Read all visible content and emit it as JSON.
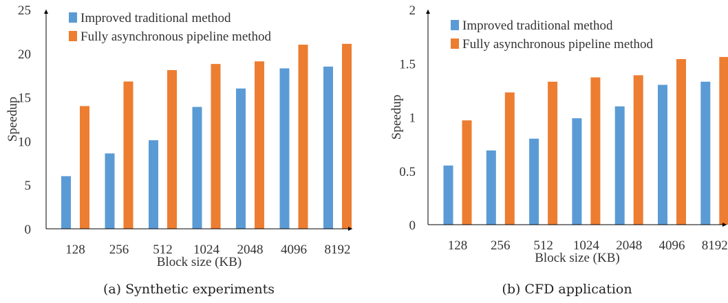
{
  "colors": {
    "series1": "#5b9bd5",
    "series2": "#ed7d31",
    "axis": "#000000"
  },
  "chart_data": [
    {
      "type": "bar",
      "caption": "(a) Synthetic experiments",
      "xlabel": "Block size (KB)",
      "ylabel": "Speedup",
      "ylim": [
        0,
        25
      ],
      "yticks": [
        "0",
        "5",
        "10",
        "15",
        "20",
        "25"
      ],
      "categories": [
        "128",
        "256",
        "512",
        "1024",
        "2048",
        "4096",
        "8192"
      ],
      "legend_position": "top-left",
      "grid": false,
      "series": [
        {
          "name": "Improved traditional method",
          "values": [
            6.0,
            8.6,
            10.1,
            13.9,
            16.0,
            18.3,
            18.5
          ]
        },
        {
          "name": "Fully asynchronous pipeline method",
          "values": [
            14.0,
            16.8,
            18.1,
            18.8,
            19.1,
            21.0,
            21.1
          ]
        }
      ]
    },
    {
      "type": "bar",
      "caption": "(b) CFD application",
      "xlabel": "Block size (KB)",
      "ylabel": "Speedup",
      "ylim": [
        0,
        2
      ],
      "yticks": [
        "0",
        "0.5",
        "1",
        "1.5",
        "2"
      ],
      "categories": [
        "128",
        "256",
        "512",
        "1024",
        "2048",
        "4096",
        "8192"
      ],
      "legend_position": "top-left",
      "grid": false,
      "series": [
        {
          "name": "Improved traditional method",
          "values": [
            0.55,
            0.69,
            0.8,
            0.99,
            1.1,
            1.3,
            1.33
          ]
        },
        {
          "name": "Fully asynchronous pipeline method",
          "values": [
            0.97,
            1.23,
            1.33,
            1.37,
            1.39,
            1.54,
            1.56
          ]
        }
      ]
    }
  ]
}
